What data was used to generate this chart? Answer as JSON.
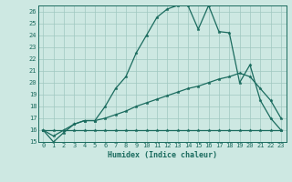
{
  "xlabel": "Humidex (Indice chaleur)",
  "xlim": [
    -0.5,
    23.5
  ],
  "ylim": [
    15,
    26.5
  ],
  "yticks": [
    15,
    16,
    17,
    18,
    19,
    20,
    21,
    22,
    23,
    24,
    25,
    26
  ],
  "xticks": [
    0,
    1,
    2,
    3,
    4,
    5,
    6,
    7,
    8,
    9,
    10,
    11,
    12,
    13,
    14,
    15,
    16,
    17,
    18,
    19,
    20,
    21,
    22,
    23
  ],
  "background_color": "#cde8e2",
  "line_color": "#1a6b5e",
  "grid_color": "#a0c8c0",
  "series": [
    [
      16,
      15,
      15.8,
      16.5,
      16.8,
      16.8,
      18.0,
      19.5,
      20.5,
      22.5,
      24.0,
      25.5,
      26.2,
      26.5,
      26.5,
      24.5,
      26.5,
      24.3,
      24.2,
      20.0,
      21.5,
      18.5,
      17.0,
      16.0
    ],
    [
      16,
      15.5,
      16.0,
      16.5,
      16.8,
      16.8,
      17.0,
      17.3,
      17.6,
      18.0,
      18.3,
      18.6,
      18.9,
      19.2,
      19.5,
      19.7,
      20.0,
      20.3,
      20.5,
      20.8,
      20.5,
      19.5,
      18.5,
      17.0
    ],
    [
      16,
      16,
      16,
      16,
      16,
      16,
      16,
      16,
      16,
      16,
      16,
      16,
      16,
      16,
      16,
      16,
      16,
      16,
      16,
      16,
      16,
      16,
      16,
      16
    ]
  ]
}
